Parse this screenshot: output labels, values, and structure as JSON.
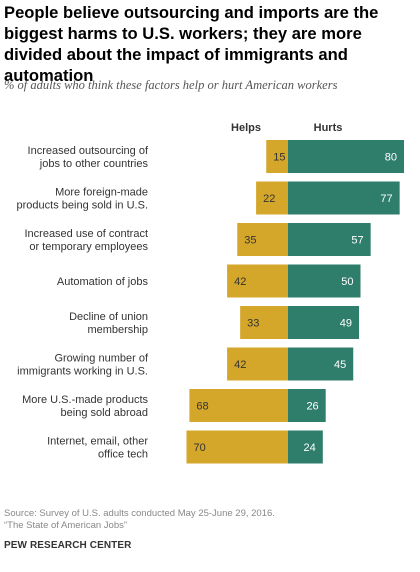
{
  "title": "People believe outsourcing and imports are the biggest harms to U.S. workers; they are more divided about the impact of immigrants and automation",
  "subtitle": "% of adults who think these factors help or hurt American workers",
  "footer": {
    "source_line1": "Source: Survey of U.S. adults conducted May 25-June 29, 2016.",
    "source_line2": "“The State of American Jobs”",
    "brand": "PEW RESEARCH CENTER"
  },
  "colors": {
    "helps": "#d4a62a",
    "hurts": "#2f7d6b"
  },
  "chart_data": {
    "type": "bar",
    "orientation": "horizontal-diverging",
    "categories": [
      [
        "Increased outsourcing of",
        "jobs to other countries"
      ],
      [
        "More foreign-made",
        "products being sold in U.S."
      ],
      [
        "Increased use of contract",
        "or temporary employees"
      ],
      [
        "Automation of jobs"
      ],
      [
        "Decline of union",
        "membership"
      ],
      [
        "Growing number of",
        "immigrants working in U.S."
      ],
      [
        "More U.S.-made products",
        "being sold abroad"
      ],
      [
        "Internet, email, other",
        "office tech"
      ]
    ],
    "series": [
      {
        "name": "Helps",
        "values": [
          15,
          22,
          35,
          42,
          33,
          42,
          68,
          70
        ]
      },
      {
        "name": "Hurts",
        "values": [
          80,
          77,
          57,
          50,
          49,
          45,
          26,
          24
        ]
      }
    ]
  }
}
